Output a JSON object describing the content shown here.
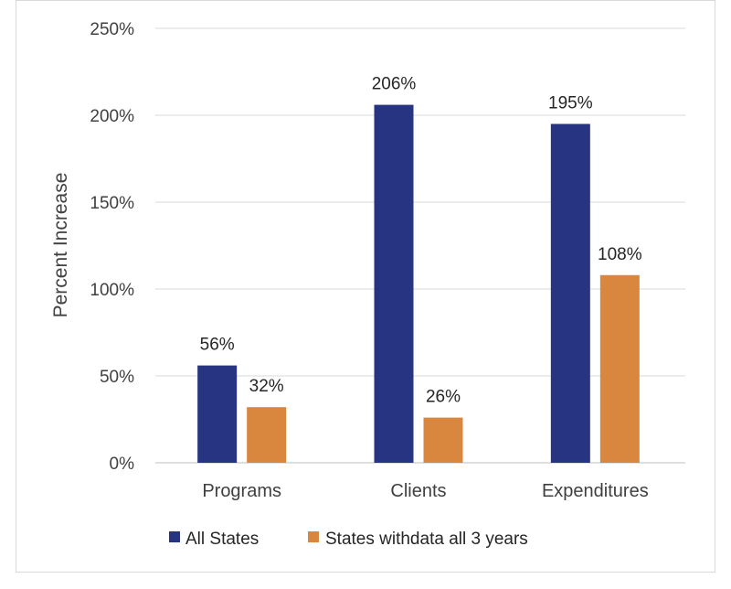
{
  "chart_data": {
    "type": "bar",
    "categories": [
      "Programs",
      "Clients",
      "Expenditures"
    ],
    "series": [
      {
        "name": "All States",
        "values": [
          56,
          206,
          195
        ],
        "color": "#273481"
      },
      {
        "name": "States withdata all 3 years",
        "values": [
          32,
          26,
          108
        ],
        "color": "#d9863f"
      }
    ],
    "value_labels": [
      [
        "56%",
        "206%",
        "195%"
      ],
      [
        "32%",
        "26%",
        "108%"
      ]
    ],
    "yticks": [
      {
        "value": 0,
        "label": "0%"
      },
      {
        "value": 50,
        "label": "50%"
      },
      {
        "value": 100,
        "label": "100%"
      },
      {
        "value": 150,
        "label": "150%"
      },
      {
        "value": 200,
        "label": "200%"
      },
      {
        "value": 250,
        "label": "250%"
      }
    ],
    "ylim": [
      0,
      250
    ],
    "ylabel": "Percent Increase",
    "xlabel": "",
    "grid": true,
    "legend_position": "bottom"
  }
}
